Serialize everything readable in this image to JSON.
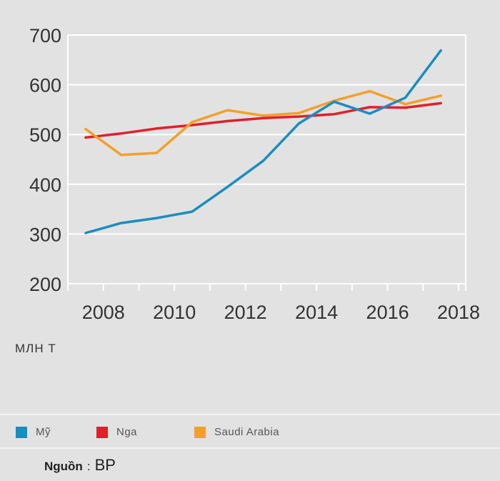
{
  "chart_data": {
    "type": "line",
    "x": [
      2007.5,
      2008.5,
      2009.5,
      2010.5,
      2011.5,
      2012.5,
      2013.5,
      2014.5,
      2015.5,
      2016.5,
      2017.5
    ],
    "series": [
      {
        "name": "Mỹ",
        "color": "#1a8dc0",
        "values": [
          302,
          322,
          332,
          345,
          395,
          447,
          522,
          566,
          542,
          574,
          669
        ]
      },
      {
        "name": "Nga",
        "color": "#e41e2a",
        "values": [
          494,
          502,
          512,
          519,
          527,
          533,
          536,
          541,
          555,
          554,
          563
        ]
      },
      {
        "name": "Saudi Arabia",
        "color": "#f3a02a",
        "values": [
          511,
          459,
          463,
          525,
          549,
          538,
          543,
          568,
          587,
          561,
          578
        ]
      }
    ],
    "y_ticks": [
      "700",
      "600",
      "500",
      "400",
      "300",
      "200"
    ],
    "x_ticks": [
      "2008",
      "2010",
      "2012",
      "2014",
      "2016",
      "2018"
    ],
    "x_tick_values": [
      2008,
      2010,
      2012,
      2014,
      2016,
      2018
    ],
    "xlim": [
      2007,
      2018.2
    ],
    "ylim": [
      200,
      700
    ],
    "unit_label": "МЛН Т",
    "grid": true,
    "legend_position": "bottom"
  },
  "source": {
    "label": "Nguồn",
    "separator": ":",
    "value": "BP"
  }
}
